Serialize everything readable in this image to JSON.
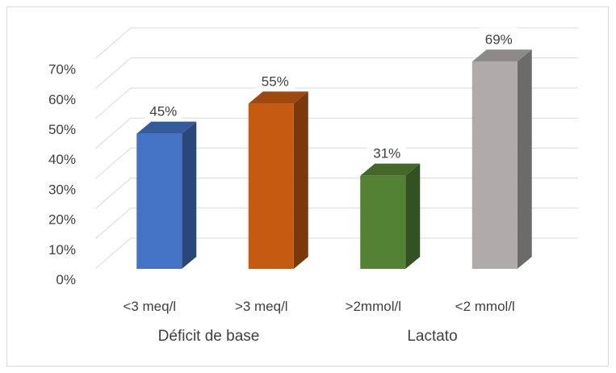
{
  "chart_data": {
    "type": "bar",
    "title": "",
    "style": "3d-column",
    "ylim": [
      0,
      70
    ],
    "ytick_labels": [
      "0%",
      "10%",
      "20%",
      "30%",
      "40%",
      "50%",
      "60%",
      "70%"
    ],
    "grid": true,
    "legend": "none",
    "categories": [
      "<3 meq/l",
      ">3 meq/l",
      ">2mmol/l",
      "<2 mmol/l"
    ],
    "groups": [
      {
        "label": "Déficit de base",
        "categories": [
          "<3 meq/l",
          ">3 meq/l"
        ]
      },
      {
        "label": "Lactato",
        "categories": [
          ">2mmol/l",
          "<2 mmol/l"
        ]
      }
    ],
    "values": [
      45,
      55,
      31,
      69
    ],
    "data_labels": [
      "45%",
      "55%",
      "31%",
      "69%"
    ],
    "colors": [
      "#4472c4",
      "#c55a11",
      "#548235",
      "#afabab"
    ]
  }
}
